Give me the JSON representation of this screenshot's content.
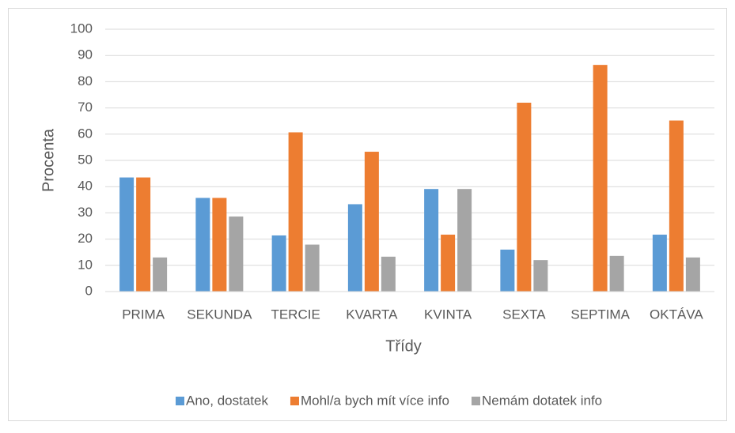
{
  "chart_data": {
    "type": "bar",
    "x_label": "Třídy",
    "y_label": "Procenta",
    "categories": [
      "PRIMA",
      "SEKUNDA",
      "TERCIE",
      "KVARTA",
      "KVINTA",
      "SEXTA",
      "SEPTIMA",
      "OKTÁVA"
    ],
    "series": [
      {
        "name": "Ano, dostatek",
        "color": "#5b9bd5",
        "values": [
          43.5,
          35.7,
          21.4,
          33.3,
          39.1,
          16,
          0,
          21.7
        ]
      },
      {
        "name": "Mohl/a bych mít více info",
        "color": "#ed7d31",
        "values": [
          43.5,
          35.7,
          60.7,
          53.3,
          21.7,
          72,
          86.4,
          65.2
        ]
      },
      {
        "name": "Nemám dotatek info",
        "color": "#a5a5a5",
        "values": [
          13,
          28.6,
          17.9,
          13.3,
          39.1,
          12,
          13.6,
          13
        ]
      }
    ],
    "ylim": [
      0,
      100
    ],
    "yticks": [
      0,
      10,
      20,
      30,
      40,
      50,
      60,
      70,
      80,
      90,
      100
    ],
    "grid": true,
    "legend": "bottom"
  }
}
